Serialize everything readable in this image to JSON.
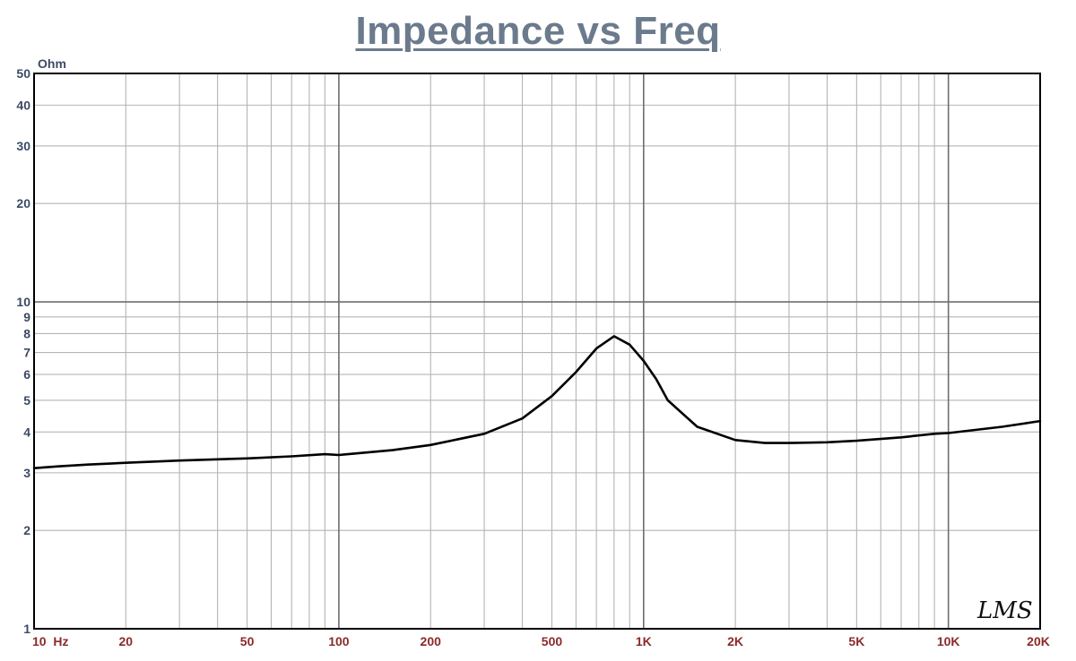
{
  "chart_data": {
    "type": "line",
    "title": "Impedance vs Freq",
    "ylabel": "Ohm",
    "xlabel": "",
    "x_scale": "log",
    "y_scale": "log",
    "xlim": [
      10,
      20000
    ],
    "ylim": [
      1,
      50
    ],
    "grid": true,
    "x_tick_labels": [
      {
        "value": 10,
        "label": "10  Hz"
      },
      {
        "value": 20,
        "label": "20"
      },
      {
        "value": 50,
        "label": "50"
      },
      {
        "value": 100,
        "label": "100"
      },
      {
        "value": 200,
        "label": "200"
      },
      {
        "value": 500,
        "label": "500"
      },
      {
        "value": 1000,
        "label": "1K"
      },
      {
        "value": 2000,
        "label": "2K"
      },
      {
        "value": 5000,
        "label": "5K"
      },
      {
        "value": 10000,
        "label": "10K"
      },
      {
        "value": 20000,
        "label": "20K"
      }
    ],
    "y_tick_labels": [
      {
        "value": 1,
        "label": "1"
      },
      {
        "value": 2,
        "label": "2"
      },
      {
        "value": 3,
        "label": "3"
      },
      {
        "value": 4,
        "label": "4"
      },
      {
        "value": 5,
        "label": "5"
      },
      {
        "value": 6,
        "label": "6"
      },
      {
        "value": 7,
        "label": "7"
      },
      {
        "value": 8,
        "label": "8"
      },
      {
        "value": 9,
        "label": "9"
      },
      {
        "value": 10,
        "label": "10"
      },
      {
        "value": 20,
        "label": "20"
      },
      {
        "value": 30,
        "label": "30"
      },
      {
        "value": 40,
        "label": "40"
      },
      {
        "value": 50,
        "label": "50"
      }
    ],
    "series": [
      {
        "color": "#000000",
        "x": [
          10,
          12,
          15,
          20,
          30,
          50,
          70,
          90,
          100,
          150,
          200,
          300,
          400,
          500,
          600,
          700,
          800,
          900,
          1000,
          1100,
          1200,
          1500,
          2000,
          2500,
          3000,
          4000,
          5000,
          7000,
          9000,
          10000,
          15000,
          20000
        ],
        "y": [
          3.1,
          3.14,
          3.18,
          3.22,
          3.27,
          3.32,
          3.37,
          3.42,
          3.4,
          3.52,
          3.65,
          3.95,
          4.4,
          5.15,
          6.1,
          7.2,
          7.85,
          7.4,
          6.6,
          5.8,
          5.0,
          4.15,
          3.78,
          3.7,
          3.7,
          3.72,
          3.76,
          3.85,
          3.95,
          3.97,
          4.15,
          4.32
        ]
      }
    ]
  },
  "watermark": "LMS"
}
